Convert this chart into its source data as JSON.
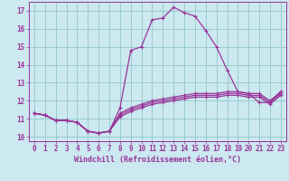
{
  "xlabel": "Windchill (Refroidissement éolien,°C)",
  "bg_color": "#cce8f0",
  "line_color": "#993399",
  "grid_color": "#99cccc",
  "x_values": [
    0,
    1,
    2,
    3,
    4,
    5,
    6,
    7,
    8,
    9,
    10,
    11,
    12,
    13,
    14,
    15,
    16,
    17,
    18,
    19,
    20,
    21,
    22,
    23
  ],
  "series": [
    [
      11.3,
      11.2,
      10.9,
      10.9,
      10.8,
      10.3,
      10.2,
      10.3,
      11.6,
      14.8,
      15.0,
      16.5,
      16.6,
      17.2,
      16.9,
      16.7,
      15.9,
      15.0,
      13.7,
      12.5,
      12.4,
      11.9,
      11.9,
      12.5
    ],
    [
      11.3,
      11.2,
      10.9,
      10.9,
      10.8,
      10.3,
      10.2,
      10.3,
      11.3,
      11.6,
      11.8,
      12.0,
      12.1,
      12.2,
      12.3,
      12.4,
      12.4,
      12.4,
      12.5,
      12.5,
      12.4,
      12.4,
      12.0,
      12.5
    ],
    [
      11.3,
      11.2,
      10.9,
      10.9,
      10.8,
      10.3,
      10.2,
      10.3,
      11.2,
      11.5,
      11.7,
      11.9,
      12.0,
      12.1,
      12.2,
      12.3,
      12.3,
      12.3,
      12.4,
      12.4,
      12.3,
      12.3,
      11.9,
      12.4
    ],
    [
      11.3,
      11.2,
      10.9,
      10.9,
      10.8,
      10.3,
      10.2,
      10.3,
      11.1,
      11.4,
      11.6,
      11.8,
      11.9,
      12.0,
      12.1,
      12.2,
      12.2,
      12.2,
      12.3,
      12.3,
      12.2,
      12.2,
      11.8,
      12.3
    ]
  ],
  "xlim": [
    -0.5,
    23.5
  ],
  "ylim": [
    9.75,
    17.5
  ],
  "yticks": [
    10,
    11,
    12,
    13,
    14,
    15,
    16,
    17
  ],
  "xticks": [
    0,
    1,
    2,
    3,
    4,
    5,
    6,
    7,
    8,
    9,
    10,
    11,
    12,
    13,
    14,
    15,
    16,
    17,
    18,
    19,
    20,
    21,
    22,
    23
  ],
  "tick_fontsize": 5.5,
  "xlabel_fontsize": 6.0,
  "linewidth": 0.9,
  "markersize": 3.0
}
